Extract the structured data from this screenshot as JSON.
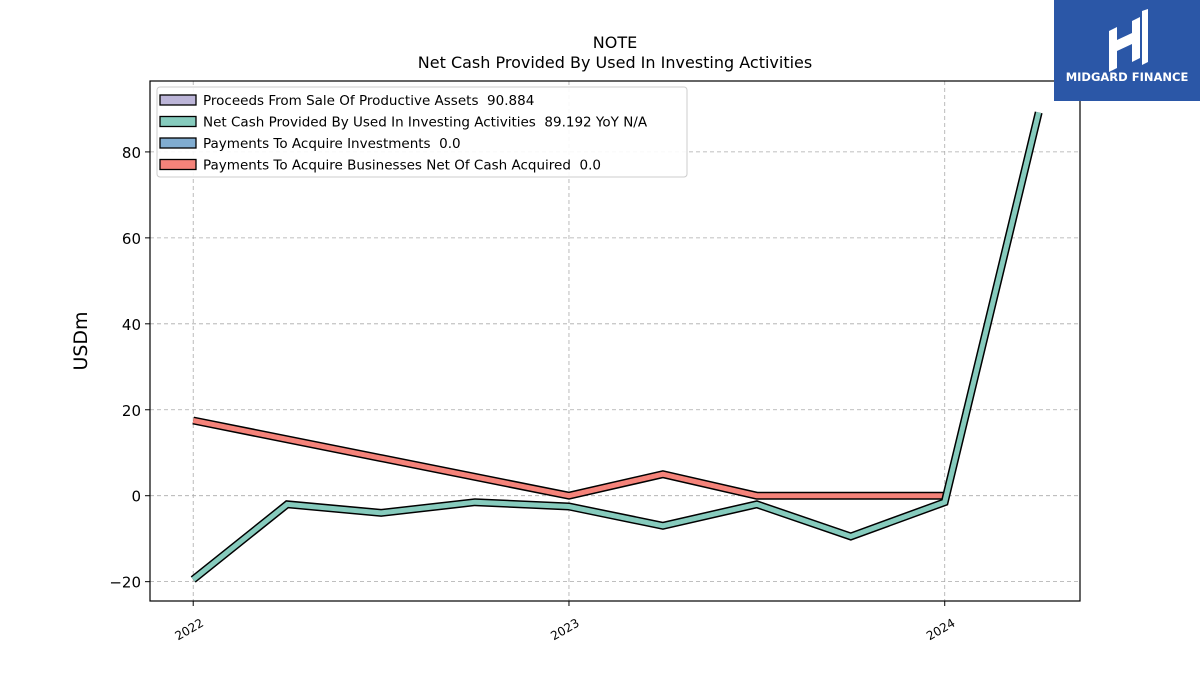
{
  "title_line1": "NOTE",
  "title_line2": "Net Cash Provided By Used In Investing Activities",
  "logo": {
    "text": "MIDGARD FINANCE",
    "bg_color": "#2b57a7"
  },
  "chart_data": {
    "type": "line",
    "ylabel": "USDm",
    "xlabel": "",
    "ylim": [
      -24.5,
      96.5
    ],
    "yticks": [
      -20,
      0,
      20,
      40,
      60,
      80
    ],
    "ytick_labels": [
      "−20",
      "0",
      "20",
      "40",
      "60",
      "80"
    ],
    "xlim": [
      2021.885,
      2024.36
    ],
    "xticks": [
      2022,
      2023,
      2024
    ],
    "xtick_labels": [
      "2022",
      "2023",
      "2024"
    ],
    "grid": true,
    "legend_position": "top-left",
    "series": [
      {
        "name": "Proceeds From Sale Of Productive Assets",
        "legend": "Proceeds From Sale Of Productive Assets  90.884",
        "color": "#bcb5d8",
        "x": [],
        "values": []
      },
      {
        "name": "Net Cash Provided By Used In Investing Activities",
        "legend": "Net Cash Provided By Used In Investing Activities  89.192 YoY N/A",
        "color": "#86cbbd",
        "x": [
          2022.0,
          2022.25,
          2022.5,
          2022.75,
          2023.0,
          2023.25,
          2023.5,
          2023.75,
          2024.0,
          2024.25
        ],
        "values": [
          -19.5,
          -2.0,
          -4.0,
          -1.5,
          -2.5,
          -7.0,
          -2.0,
          -9.5,
          -1.5,
          89.2
        ]
      },
      {
        "name": "Payments To Acquire Investments",
        "legend": "Payments To Acquire Investments  0.0",
        "color": "#80acd0",
        "x": [],
        "values": []
      },
      {
        "name": "Payments To Acquire Businesses Net Of Cash Acquired",
        "legend": "Payments To Acquire Businesses Net Of Cash Acquired  0.0",
        "color": "#f5837a",
        "x": [
          2022.0,
          2023.0,
          2023.25,
          2023.5,
          2023.75,
          2024.0
        ],
        "values": [
          17.5,
          0.0,
          5.0,
          0.0,
          0.0,
          0.0
        ]
      }
    ]
  }
}
